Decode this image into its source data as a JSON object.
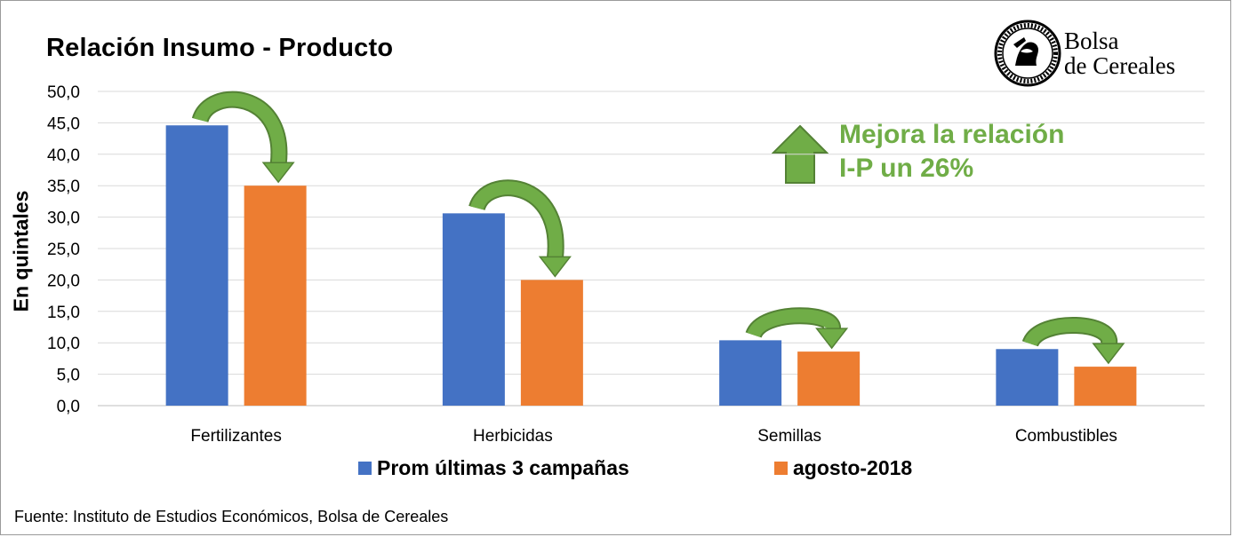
{
  "header": {
    "title": "Relación Insumo - Producto",
    "logo_line1": "Bolsa",
    "logo_line2": "de Cereales",
    "logo_seal_text": "Constantia · et · Labore · Buenos Aires · 1854"
  },
  "annotation": {
    "line1": "Mejora la relación",
    "line2": "I-P un 26%",
    "color": "#70ad47",
    "icon": "up-arrow-icon"
  },
  "footer": {
    "source": "Fuente: Instituto de Estudios Económicos, Bolsa de Cereales"
  },
  "chart_data": {
    "type": "bar",
    "title": "Relación Insumo - Producto",
    "xlabel": "",
    "ylabel": "En quintales",
    "ylim": [
      0,
      50
    ],
    "y_ticks": [
      "0,0",
      "5,0",
      "10,0",
      "15,0",
      "20,0",
      "25,0",
      "30,0",
      "35,0",
      "40,0",
      "45,0",
      "50,0"
    ],
    "grid": true,
    "legend_position": "bottom",
    "categories": [
      "Fertilizantes",
      "Herbicidas",
      "Semillas",
      "Combustibles"
    ],
    "series": [
      {
        "name": "Prom últimas 3 campañas",
        "color": "#4472c4",
        "values": [
          44.6,
          30.6,
          10.4,
          9.0
        ]
      },
      {
        "name": "agosto-2018",
        "color": "#ed7d31",
        "values": [
          35.0,
          20.0,
          8.6,
          6.2
        ]
      }
    ],
    "arrow_color": "#70ad47"
  }
}
